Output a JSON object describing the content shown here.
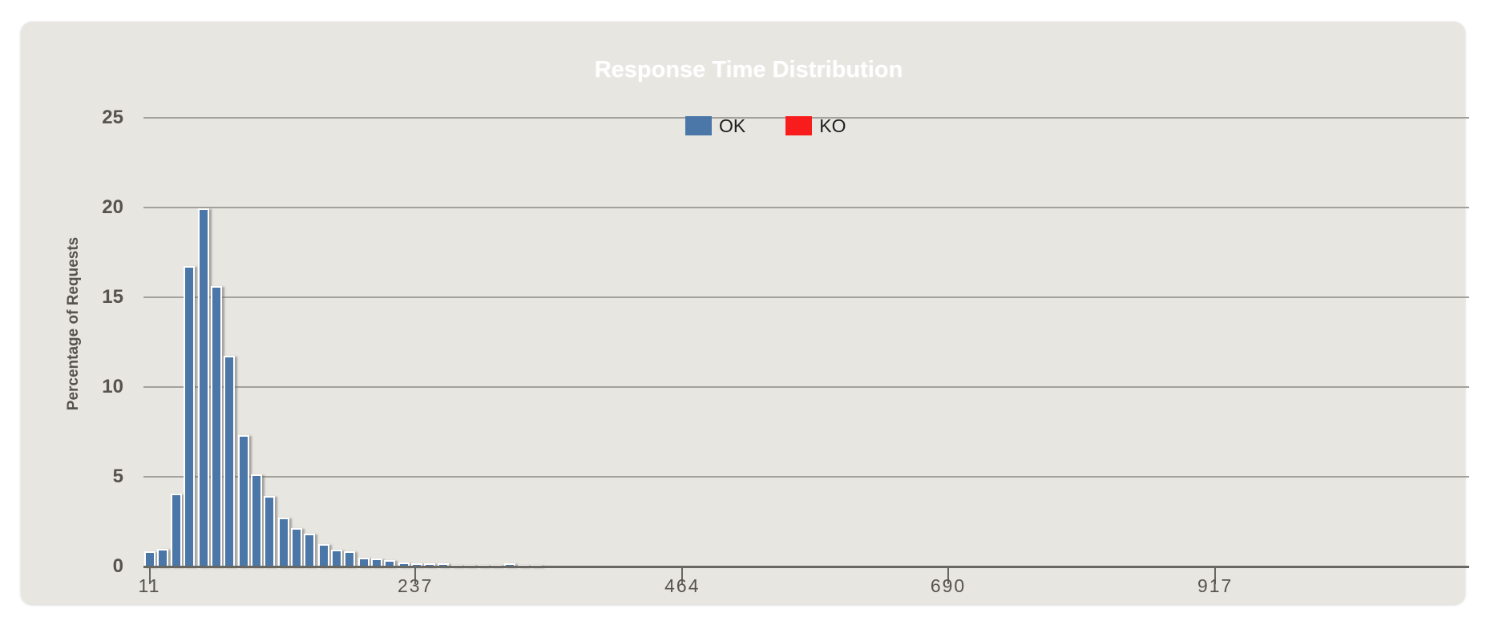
{
  "chart_data": {
    "type": "bar",
    "title": "Response Time Distribution",
    "ylabel": "Percentage of Requests",
    "xlabel": "",
    "grid": "horizontal-only",
    "legend_position": "top-center",
    "legend": [
      {
        "label": "OK",
        "color": "#4a77a8"
      },
      {
        "label": "KO",
        "color": "#f91c1c"
      }
    ],
    "y_ticks": [
      0,
      5,
      10,
      15,
      20,
      25
    ],
    "ylim": [
      0,
      25
    ],
    "x_ticks": [
      11,
      237,
      464,
      690,
      917
    ],
    "xlim": [
      11,
      1132
    ],
    "series": [
      {
        "name": "OK",
        "color": "#4a77a8",
        "x": [
          11,
          22,
          34,
          45,
          57,
          68,
          79,
          91,
          102,
          113,
          125,
          136,
          147,
          159,
          170,
          181,
          193,
          204,
          215,
          227,
          238,
          249,
          261,
          272,
          283,
          295,
          306,
          317,
          329,
          340
        ],
        "values": [
          0.8,
          0.95,
          4.0,
          16.7,
          19.9,
          15.6,
          11.7,
          7.3,
          5.1,
          3.9,
          2.7,
          2.1,
          1.8,
          1.2,
          0.9,
          0.8,
          0.45,
          0.4,
          0.3,
          0.2,
          0.15,
          0.15,
          0.15,
          0.05,
          0.05,
          0.05,
          0.05,
          0.12,
          0.05,
          0.05
        ]
      },
      {
        "name": "KO",
        "color": "#f91c1c",
        "x": [],
        "values": []
      }
    ]
  },
  "colors": {
    "panel_background": "#e8e6e1",
    "title_pill_background": "#aba9a1",
    "title_text": "#ffffff",
    "gridline": "#a2a19b",
    "axis_line": "#686762",
    "tick_label": "#57544e",
    "bar_ok": "#4a77a8",
    "legend_ko": "#f91c1c"
  }
}
